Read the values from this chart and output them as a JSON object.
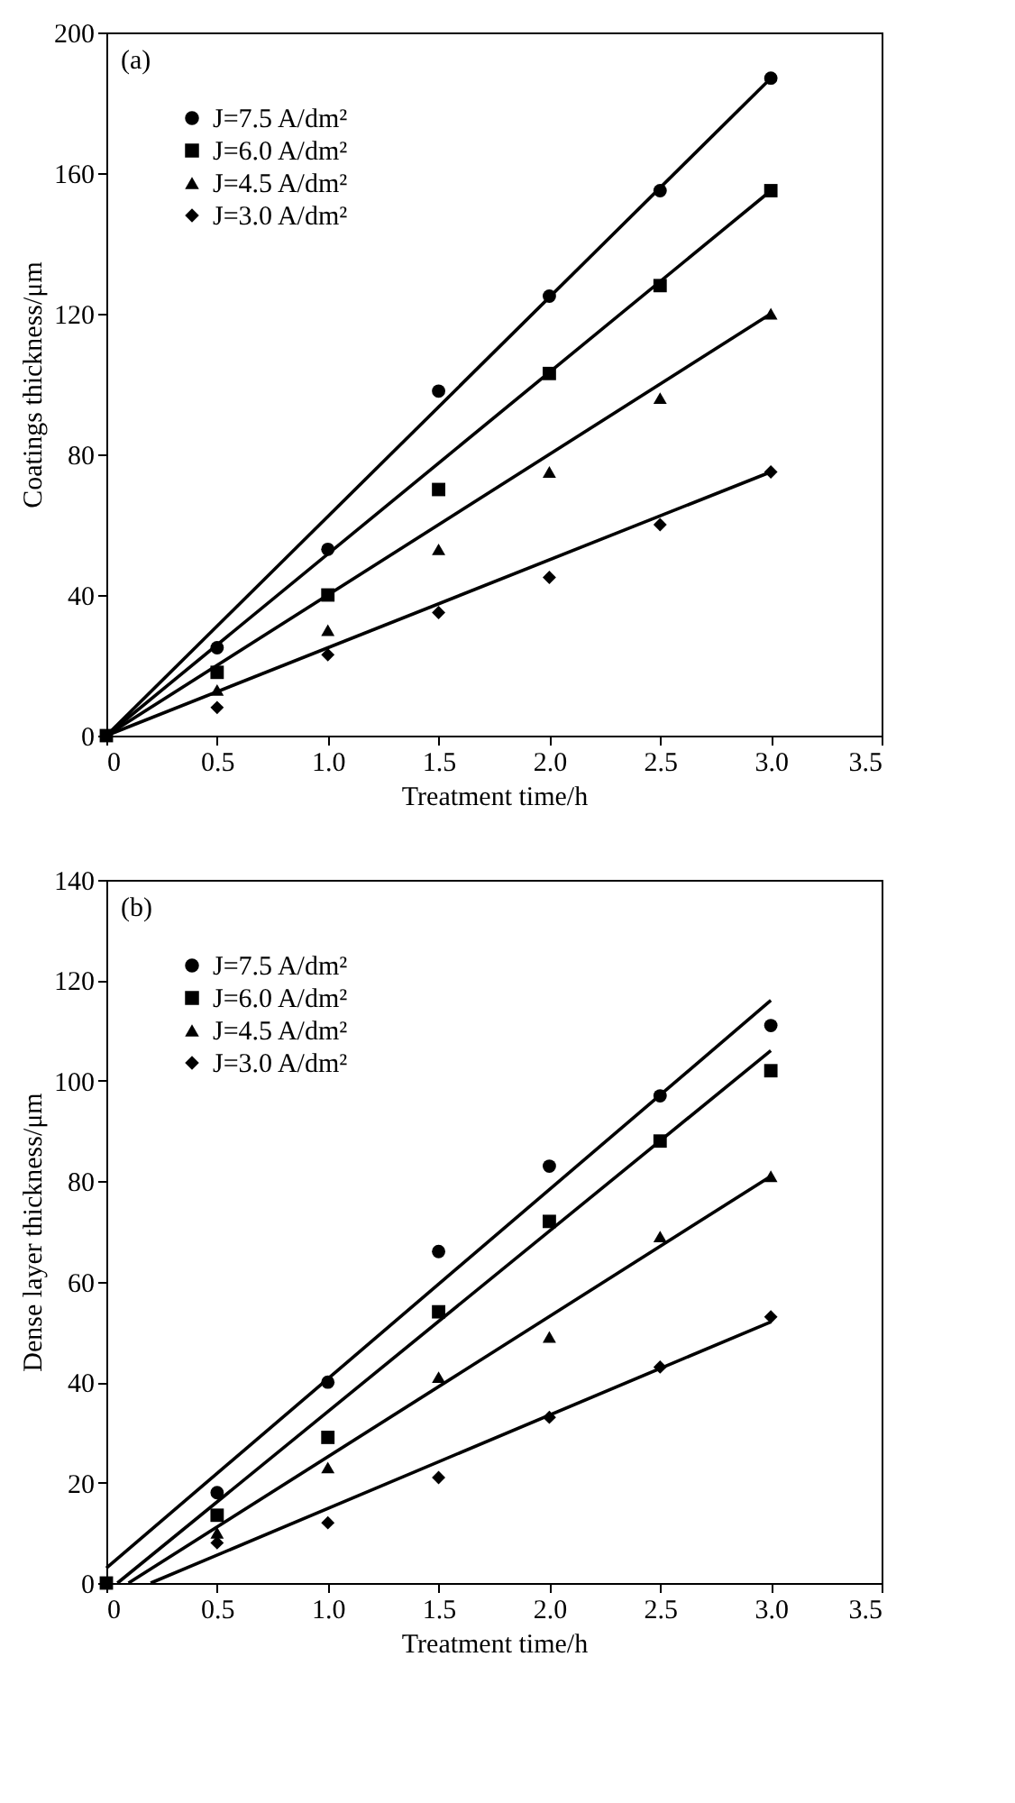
{
  "chart_data": [
    {
      "type": "scatter",
      "xlabel": "Treatment time/h",
      "ylabel": "Coatings thickness/μm",
      "annotations": [
        "(a)"
      ],
      "xlim": [
        0,
        3.5
      ],
      "xticks": [
        {
          "value": 0,
          "label": "0"
        },
        0.5,
        {
          "value": 1,
          "label": "1.0"
        },
        1.5,
        {
          "value": 2,
          "label": "2.0"
        },
        2.5,
        {
          "value": 3,
          "label": "3.0"
        },
        3.5
      ],
      "ylim": [
        0,
        200
      ],
      "yticks": [
        0,
        40,
        80,
        120,
        160,
        200
      ],
      "grid": false,
      "legend": "top left",
      "x": [
        0,
        0.5,
        1,
        1.5,
        2,
        2.5,
        3
      ],
      "series": [
        {
          "name": "J=7.5 A/dm²",
          "color": "#000000",
          "marker": "circle",
          "values": [
            null,
            25,
            53,
            98,
            125,
            155,
            187
          ]
        },
        {
          "name": "J=6.0 A/dm²",
          "color": "#000000",
          "marker": "square",
          "values": [
            0,
            18,
            40,
            70,
            103,
            128,
            155
          ]
        },
        {
          "name": "J=4.5 A/dm²",
          "color": "#000000",
          "marker": "triangle",
          "values": [
            null,
            13,
            30,
            53,
            75,
            96,
            120
          ]
        },
        {
          "name": "J=3.0 A/dm²",
          "color": "#000000",
          "marker": "diamond",
          "values": [
            null,
            8,
            23,
            35,
            45,
            60,
            75
          ]
        },
        {
          "type": "line",
          "color": "#000000",
          "x": [
            0,
            3
          ],
          "values": [
            0,
            187
          ]
        },
        {
          "type": "line",
          "color": "#000000",
          "x": [
            0,
            3
          ],
          "values": [
            0,
            155
          ]
        },
        {
          "type": "line",
          "color": "#000000",
          "x": [
            0,
            3
          ],
          "values": [
            0,
            120
          ]
        },
        {
          "type": "line",
          "color": "#000000",
          "x": [
            0,
            3
          ],
          "values": [
            0,
            75
          ]
        }
      ]
    },
    {
      "type": "scatter",
      "xlabel": "Treatment time/h",
      "ylabel": "Dense layer thickness/μm",
      "annotations": [
        "(b)"
      ],
      "xlim": [
        0,
        3.5
      ],
      "xticks": [
        {
          "value": 0,
          "label": "0"
        },
        0.5,
        {
          "value": 1,
          "label": "1.0"
        },
        1.5,
        {
          "value": 2,
          "label": "2.0"
        },
        2.5,
        {
          "value": 3,
          "label": "3.0"
        },
        3.5
      ],
      "ylim": [
        0,
        140
      ],
      "yticks": [
        0,
        20,
        40,
        60,
        80,
        100,
        120,
        140
      ],
      "grid": false,
      "legend": "top left",
      "x": [
        0,
        0.5,
        1,
        1.5,
        2,
        2.5,
        3
      ],
      "series": [
        {
          "name": "J=7.5 A/dm²",
          "color": "#000000",
          "marker": "circle",
          "values": [
            null,
            18,
            40,
            66,
            83,
            97,
            111
          ]
        },
        {
          "name": "J=6.0 A/dm²",
          "color": "#000000",
          "marker": "square",
          "values": [
            0,
            13.5,
            29,
            54,
            72,
            88,
            102
          ]
        },
        {
          "name": "J=4.5 A/dm²",
          "color": "#000000",
          "marker": "triangle",
          "values": [
            null,
            10,
            23,
            41,
            49,
            69,
            81
          ]
        },
        {
          "name": "J=3.0 A/dm²",
          "color": "#000000",
          "marker": "diamond",
          "values": [
            null,
            8,
            12,
            21,
            33,
            43,
            53
          ]
        },
        {
          "type": "line",
          "color": "#000000",
          "x": [
            0,
            3
          ],
          "values": [
            3,
            116
          ]
        },
        {
          "type": "line",
          "color": "#000000",
          "x": [
            0.05,
            3
          ],
          "values": [
            0,
            106
          ]
        },
        {
          "type": "line",
          "color": "#000000",
          "x": [
            0.1,
            3
          ],
          "values": [
            0,
            81
          ]
        },
        {
          "type": "line",
          "color": "#000000",
          "x": [
            0.2,
            3
          ],
          "values": [
            0,
            52
          ]
        }
      ]
    }
  ]
}
